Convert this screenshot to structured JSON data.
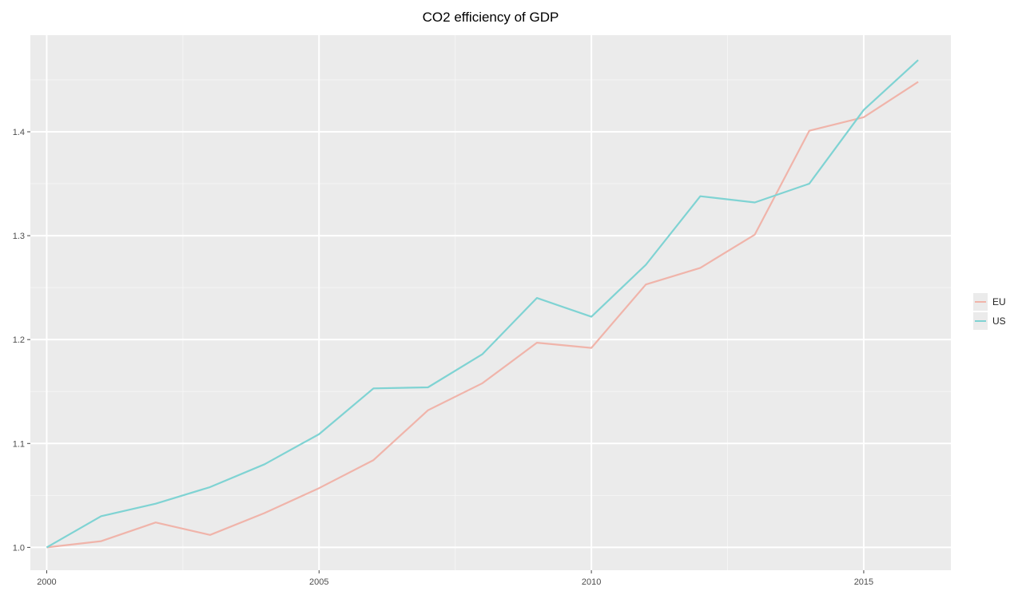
{
  "chart_data": {
    "type": "line",
    "title": "CO2 efficiency of GDP",
    "xlabel": "",
    "ylabel": "",
    "x": [
      2000,
      2001,
      2002,
      2003,
      2004,
      2005,
      2006,
      2007,
      2008,
      2009,
      2010,
      2011,
      2012,
      2013,
      2014,
      2015,
      2016
    ],
    "xlim": [
      1999.7,
      2016.6
    ],
    "ylim": [
      0.978,
      1.493
    ],
    "x_ticks": [
      2000,
      2005,
      2010,
      2015
    ],
    "x_tick_labels": [
      "2000",
      "2005",
      "2010",
      "2015"
    ],
    "y_ticks": [
      1.0,
      1.1,
      1.2,
      1.3,
      1.4
    ],
    "y_tick_labels": [
      "1.0",
      "1.1",
      "1.2",
      "1.3",
      "1.4"
    ],
    "grid": true,
    "legend_position": "right",
    "series": [
      {
        "name": "EU",
        "color": "#f0b4aa",
        "values": [
          1.0,
          1.006,
          1.024,
          1.012,
          1.033,
          1.057,
          1.084,
          1.132,
          1.158,
          1.197,
          1.192,
          1.253,
          1.269,
          1.301,
          1.401,
          1.414,
          1.448
        ]
      },
      {
        "name": "US",
        "color": "#7fd3d3",
        "values": [
          1.0,
          1.03,
          1.042,
          1.058,
          1.08,
          1.109,
          1.153,
          1.154,
          1.186,
          1.24,
          1.222,
          1.272,
          1.338,
          1.332,
          1.35,
          1.421,
          1.469
        ]
      }
    ]
  }
}
